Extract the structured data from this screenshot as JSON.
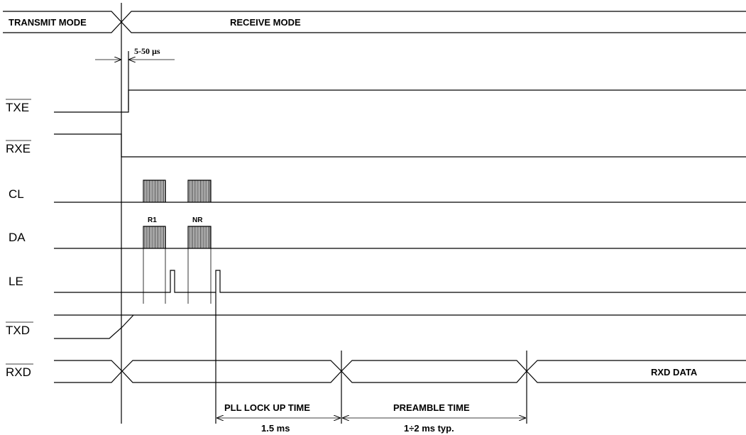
{
  "modes": {
    "transmit": "TRANSMIT MODE",
    "receive": "RECEIVE MODE"
  },
  "delay_label": "5-50 µs",
  "signals": {
    "txe": "TXE",
    "rxe": "RXE",
    "cl": "CL",
    "da": "DA",
    "le": "LE",
    "txd": "TXD",
    "rxd": "RXD"
  },
  "registers": {
    "r1": "R1",
    "nr": "NR"
  },
  "rxd_data": "RXD DATA",
  "timings": {
    "pll_label": "PLL LOCK UP TIME",
    "pll_value": "1.5 ms",
    "preamble_label": "PREAMBLE TIME",
    "preamble_value": "1÷2 ms  typ."
  }
}
